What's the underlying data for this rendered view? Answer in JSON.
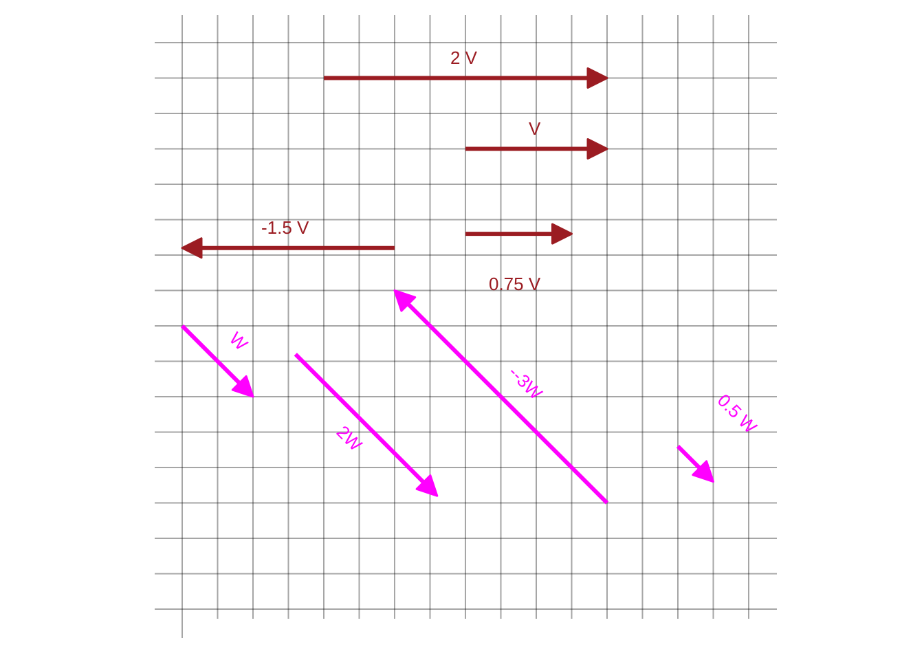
{
  "diagram": {
    "grid": {
      "columns": 17,
      "rows": 17,
      "color": "#000000"
    },
    "colors": {
      "v": "#9b1c22",
      "w": "#ff00ff"
    },
    "vectors": [
      {
        "id": "v-2",
        "label": "2 V",
        "color_key": "v",
        "from": [
          4,
          15
        ],
        "to": [
          12,
          15
        ],
        "head": "end"
      },
      {
        "id": "v-1",
        "label": "V",
        "color_key": "v",
        "from": [
          8,
          13
        ],
        "to": [
          12,
          13
        ],
        "head": "end"
      },
      {
        "id": "v-neg1-5",
        "label": "-1.5 V",
        "color_key": "v",
        "from": [
          6,
          10.2
        ],
        "to": [
          0,
          10.2
        ],
        "head": "end"
      },
      {
        "id": "v-0-75",
        "label": "0.75 V",
        "color_key": "v",
        "from": [
          8,
          10.6
        ],
        "to": [
          11,
          10.6
        ],
        "head": "end"
      },
      {
        "id": "w-1",
        "label": "W",
        "color_key": "w",
        "from": [
          0,
          8
        ],
        "to": [
          2,
          6
        ],
        "head": "end"
      },
      {
        "id": "w-2",
        "label": "2W",
        "color_key": "w",
        "from": [
          3.2,
          7.2
        ],
        "to": [
          7.2,
          3.2
        ],
        "head": "end"
      },
      {
        "id": "w-neg3",
        "label": "--3W",
        "color_key": "w",
        "from": [
          12,
          3
        ],
        "to": [
          6,
          9
        ],
        "head": "end"
      },
      {
        "id": "w-0-5",
        "label": "0.5 W",
        "color_key": "w",
        "from": [
          14,
          4.6
        ],
        "to": [
          15,
          3.6
        ],
        "head": "end"
      }
    ]
  }
}
